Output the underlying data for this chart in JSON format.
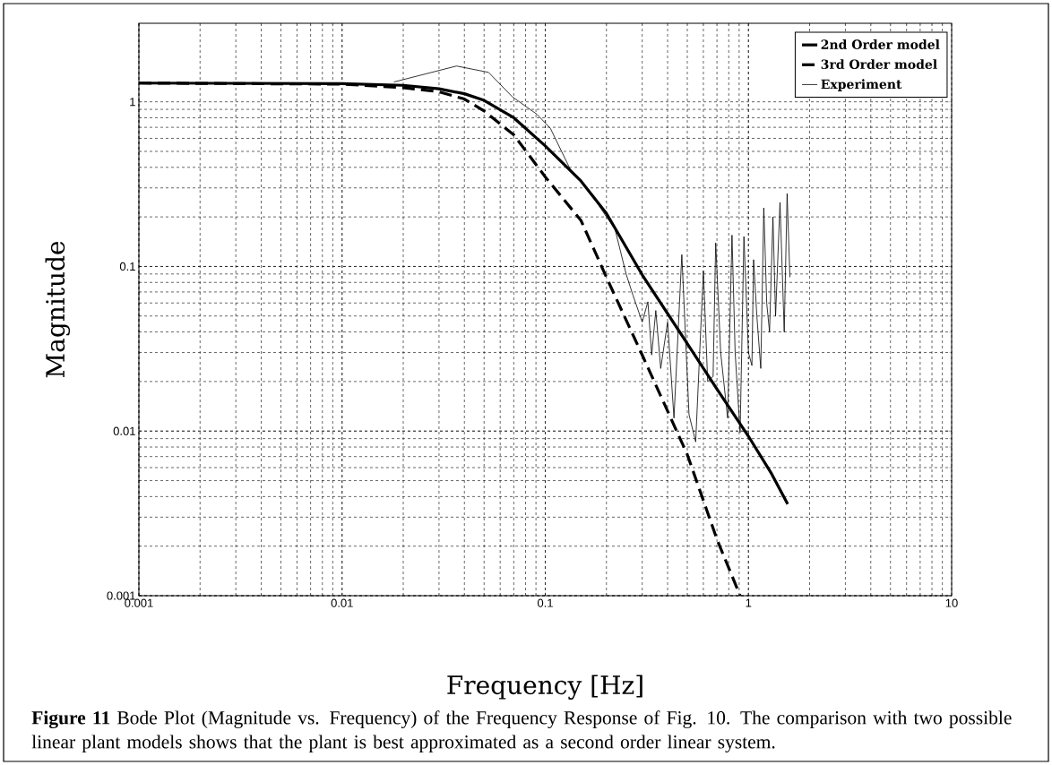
{
  "chart_data": {
    "type": "line",
    "xlabel": "Frequency [Hz]",
    "ylabel": "Magnitude",
    "log": "xy",
    "grid": true,
    "legend": "top right",
    "xlim": [
      0.001,
      10
    ],
    "ylim": [
      0.001,
      3
    ],
    "xticks": [
      0.001,
      0.01,
      0.1,
      1,
      10
    ],
    "yticks": [
      0.001,
      0.01,
      0.1,
      1
    ],
    "annotations": [
      "**Figure 11**   Bode Plot (Magnitude vs. Frequency) of the Frequency Response of Fig. 10. The comparison with two possible linear plant models shows that the plant is best approximated as a second order linear system."
    ],
    "series": [
      {
        "name": "2nd Order model",
        "color": "#000000",
        "line_style": "solid",
        "x": [
          0.001,
          0.01,
          0.02,
          0.03,
          0.04,
          0.05,
          0.07,
          0.1,
          0.15,
          0.2,
          0.3,
          0.5,
          0.7,
          1,
          1.3,
          1.56
        ],
        "values": [
          1.3,
          1.29,
          1.26,
          1.2,
          1.12,
          1.02,
          0.8,
          0.54,
          0.33,
          0.21,
          0.089,
          0.034,
          0.018,
          0.0093,
          0.0055,
          0.0036
        ]
      },
      {
        "name": "3rd Order model",
        "color": "#000000",
        "line_style": "dashed",
        "x": [
          0.001,
          0.01,
          0.02,
          0.03,
          0.04,
          0.05,
          0.07,
          0.1,
          0.15,
          0.2,
          0.3,
          0.5,
          0.7,
          0.91
        ],
        "values": [
          1.3,
          1.28,
          1.22,
          1.15,
          1.04,
          0.88,
          0.63,
          0.35,
          0.19,
          0.086,
          0.029,
          0.0072,
          0.0022,
          0.001
        ]
      },
      {
        "name": "Experiment",
        "color": "#000000",
        "line_style": "solid",
        "x": [
          0.018,
          0.0366,
          0.0526,
          0.069,
          0.091,
          0.106,
          0.134,
          0.164,
          0.2,
          0.22,
          0.25,
          0.27,
          0.3,
          0.32,
          0.334,
          0.35,
          0.37,
          0.4,
          0.43,
          0.47,
          0.51,
          0.55,
          0.6,
          0.63,
          0.67,
          0.69,
          0.73,
          0.79,
          0.83,
          0.86,
          0.91,
          0.95,
          1.0,
          1.04,
          1.06,
          1.1,
          1.15,
          1.19,
          1.23,
          1.27,
          1.32,
          1.36,
          1.43,
          1.5,
          1.55,
          1.6
        ],
        "values": [
          1.32,
          1.65,
          1.51,
          1.07,
          0.84,
          0.69,
          0.38,
          0.29,
          0.2,
          0.17,
          0.09,
          0.067,
          0.046,
          0.061,
          0.029,
          0.054,
          0.024,
          0.046,
          0.012,
          0.118,
          0.0126,
          0.0086,
          0.094,
          0.02,
          0.0215,
          0.139,
          0.03,
          0.012,
          0.155,
          0.03,
          0.0098,
          0.152,
          0.03,
          0.025,
          0.11,
          0.05,
          0.024,
          0.227,
          0.06,
          0.04,
          0.2,
          0.05,
          0.245,
          0.04,
          0.277,
          0.086
        ]
      }
    ]
  }
}
